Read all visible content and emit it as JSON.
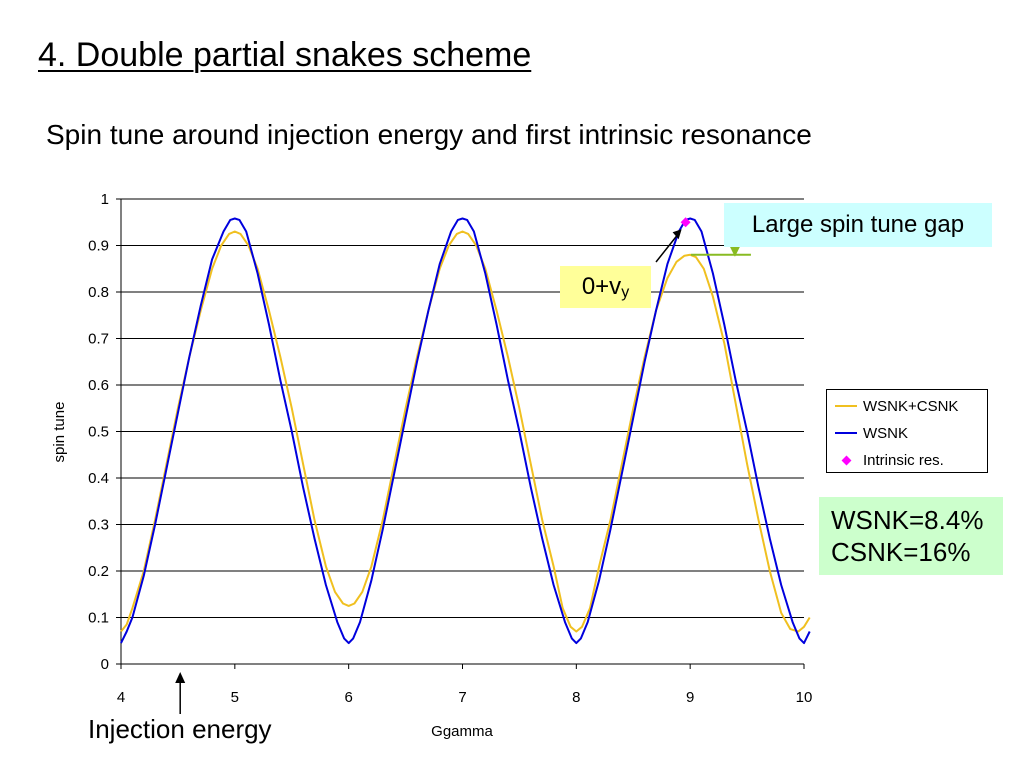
{
  "slide": {
    "title": "4. Double partial snakes scheme",
    "subtitle": "Spin tune around injection energy and first intrinsic resonance"
  },
  "annotations": {
    "gap_label": "Large spin tune gap",
    "vy_main": "0+v",
    "vy_sub": "y",
    "snake_line1": "WSNK=8.4%",
    "snake_line2": "CSNK=16%",
    "injection_label": "Injection energy",
    "injection_gamma": 4.52,
    "gap_x": 9.2,
    "gap_range": [
      0.88,
      0.96
    ]
  },
  "colors": {
    "wsnk_csnk": "#f0c020",
    "wsnk": "#0000dd",
    "intrinsic": "#ff00ff",
    "gap_marker": "#88bb22"
  },
  "chart_data": {
    "type": "line",
    "xlabel": "Ggamma",
    "ylabel": "spin tune",
    "xlim": [
      4,
      10
    ],
    "ylim": [
      0,
      1
    ],
    "x_ticks": [
      "4",
      "5",
      "6",
      "7",
      "8",
      "9",
      "10"
    ],
    "y_ticks": [
      "0",
      "0.1",
      "0.2",
      "0.3",
      "0.4",
      "0.5",
      "0.6",
      "0.7",
      "0.8",
      "0.9",
      "1"
    ],
    "grid": "horizontal",
    "legend_position": "right",
    "series": [
      {
        "name": "WSNK+CSNK",
        "x": [
          4.0,
          4.05,
          4.1,
          4.2,
          4.3,
          4.4,
          4.5,
          4.6,
          4.7,
          4.8,
          4.88,
          4.95,
          5.0,
          5.05,
          5.12,
          5.2,
          5.3,
          5.4,
          5.5,
          5.6,
          5.7,
          5.8,
          5.88,
          5.95,
          6.0,
          6.05,
          6.12,
          6.2,
          6.3,
          6.4,
          6.5,
          6.6,
          6.7,
          6.8,
          6.88,
          6.95,
          7.0,
          7.05,
          7.12,
          7.2,
          7.3,
          7.4,
          7.5,
          7.6,
          7.7,
          7.8,
          7.88,
          7.95,
          8.0,
          8.05,
          8.12,
          8.2,
          8.3,
          8.4,
          8.5,
          8.6,
          8.7,
          8.8,
          8.88,
          8.95,
          9.0,
          9.05,
          9.12,
          9.2,
          9.3,
          9.4,
          9.5,
          9.6,
          9.7,
          9.8,
          9.88,
          9.95,
          10.0,
          10.05
        ],
        "y": [
          0.07,
          0.085,
          0.12,
          0.2,
          0.31,
          0.43,
          0.55,
          0.66,
          0.76,
          0.85,
          0.9,
          0.925,
          0.93,
          0.925,
          0.9,
          0.85,
          0.76,
          0.66,
          0.55,
          0.43,
          0.31,
          0.21,
          0.155,
          0.13,
          0.125,
          0.13,
          0.155,
          0.21,
          0.31,
          0.43,
          0.55,
          0.66,
          0.76,
          0.85,
          0.9,
          0.925,
          0.93,
          0.925,
          0.9,
          0.85,
          0.76,
          0.66,
          0.55,
          0.43,
          0.31,
          0.21,
          0.12,
          0.08,
          0.07,
          0.08,
          0.12,
          0.21,
          0.31,
          0.43,
          0.55,
          0.66,
          0.76,
          0.83,
          0.865,
          0.878,
          0.88,
          0.875,
          0.85,
          0.79,
          0.69,
          0.56,
          0.43,
          0.31,
          0.2,
          0.11,
          0.075,
          0.07,
          0.08,
          0.1
        ]
      },
      {
        "name": "WSNK",
        "x": [
          4.0,
          4.05,
          4.1,
          4.2,
          4.3,
          4.4,
          4.5,
          4.6,
          4.7,
          4.8,
          4.9,
          4.96,
          5.0,
          5.04,
          5.1,
          5.2,
          5.3,
          5.4,
          5.5,
          5.6,
          5.7,
          5.8,
          5.9,
          5.96,
          6.0,
          6.04,
          6.1,
          6.2,
          6.3,
          6.4,
          6.5,
          6.6,
          6.7,
          6.8,
          6.9,
          6.96,
          7.0,
          7.04,
          7.1,
          7.2,
          7.3,
          7.4,
          7.5,
          7.6,
          7.7,
          7.8,
          7.9,
          7.96,
          8.0,
          8.04,
          8.1,
          8.2,
          8.3,
          8.4,
          8.5,
          8.6,
          8.7,
          8.8,
          8.9,
          8.96,
          9.0,
          9.04,
          9.1,
          9.2,
          9.3,
          9.4,
          9.5,
          9.6,
          9.7,
          9.8,
          9.9,
          9.96,
          10.0,
          10.05
        ],
        "y": [
          0.045,
          0.07,
          0.1,
          0.19,
          0.3,
          0.42,
          0.54,
          0.66,
          0.77,
          0.87,
          0.93,
          0.955,
          0.958,
          0.955,
          0.93,
          0.84,
          0.73,
          0.61,
          0.5,
          0.38,
          0.27,
          0.17,
          0.09,
          0.055,
          0.045,
          0.055,
          0.09,
          0.18,
          0.29,
          0.41,
          0.53,
          0.65,
          0.76,
          0.86,
          0.93,
          0.955,
          0.958,
          0.955,
          0.93,
          0.84,
          0.73,
          0.61,
          0.5,
          0.38,
          0.27,
          0.17,
          0.09,
          0.055,
          0.045,
          0.055,
          0.09,
          0.18,
          0.29,
          0.41,
          0.53,
          0.65,
          0.76,
          0.86,
          0.93,
          0.955,
          0.958,
          0.955,
          0.93,
          0.84,
          0.73,
          0.61,
          0.5,
          0.38,
          0.27,
          0.17,
          0.09,
          0.055,
          0.045,
          0.07
        ]
      },
      {
        "name": "Intrinsic res.",
        "type": "scatter",
        "x": [
          8.96
        ],
        "y": [
          0.95
        ]
      }
    ]
  }
}
